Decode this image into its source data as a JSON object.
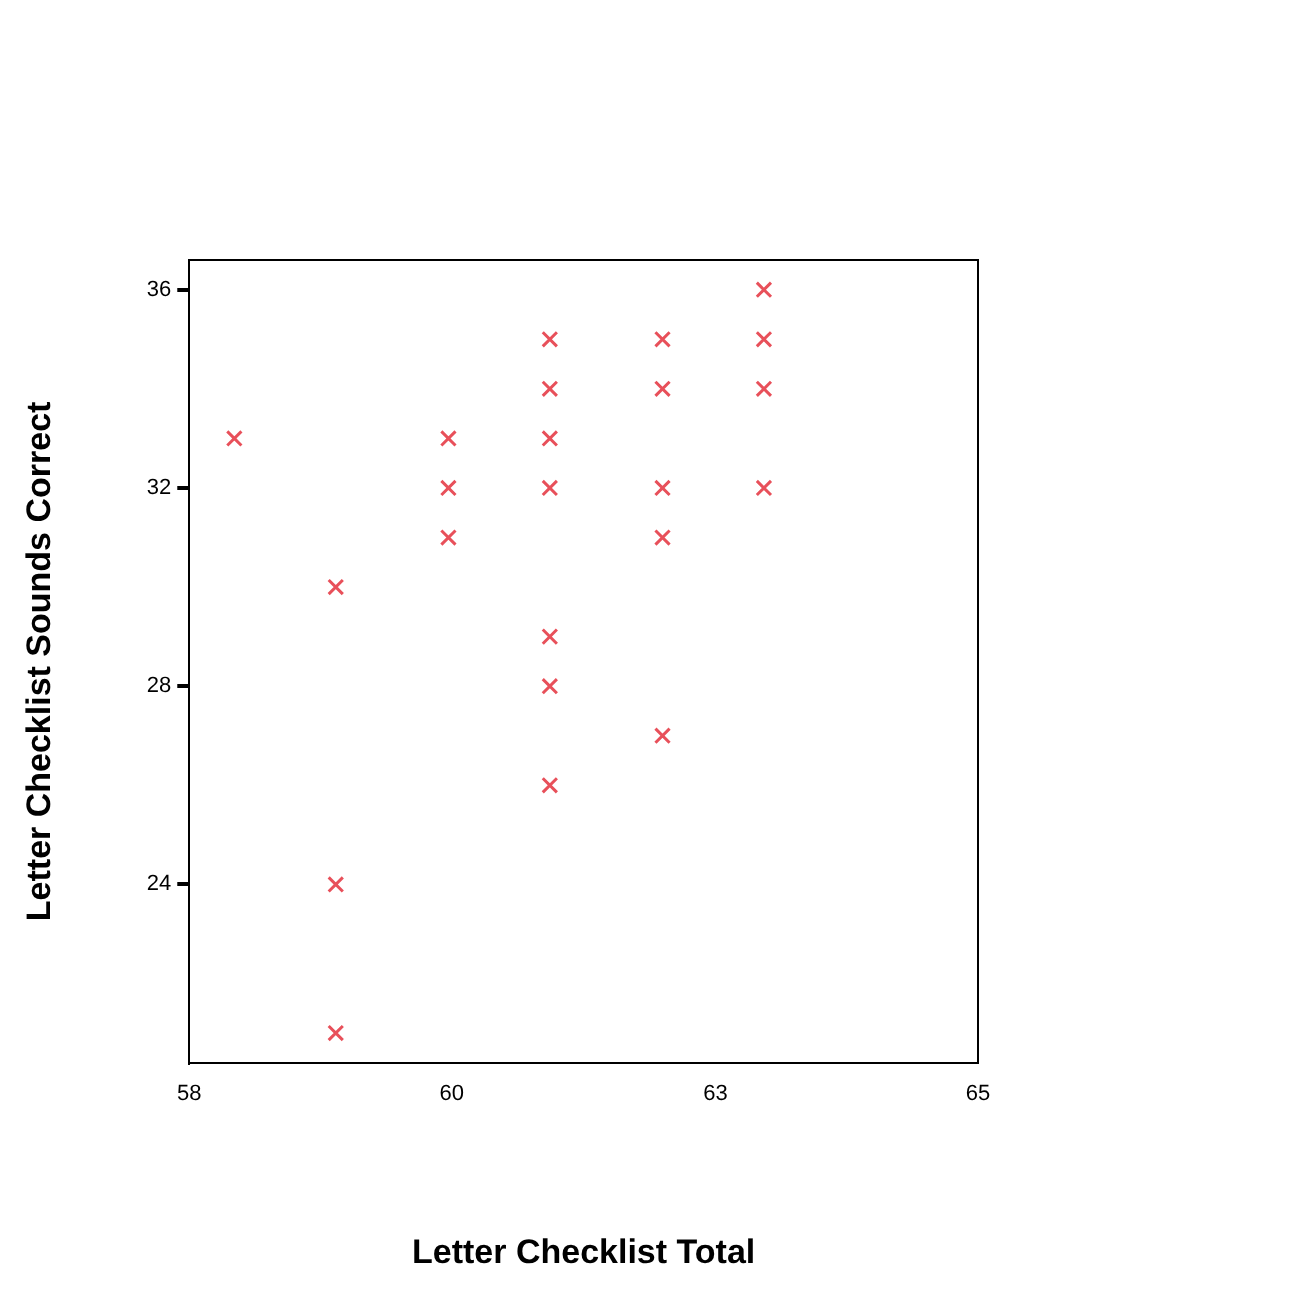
{
  "chart_data": {
    "type": "scatter",
    "xlabel": "Letter Checklist Total",
    "ylabel": "Letter Checklist Sounds Correct",
    "series": [
      {
        "color": "#e8505a",
        "x": [
          58.4,
          59.3,
          59.3,
          59.3,
          60.3,
          60.3,
          60.3,
          61.2,
          61.2,
          61.2,
          61.2,
          61.2,
          61.2,
          61.2,
          62.2,
          62.2,
          62.2,
          62.2,
          62.2,
          63.1,
          63.1,
          63.1,
          63.1
        ],
        "values": [
          33,
          30,
          24,
          21,
          33,
          32,
          31,
          35,
          34,
          33,
          32,
          29,
          28,
          26,
          35,
          34,
          32,
          31,
          27,
          36,
          35,
          34,
          32
        ]
      }
    ],
    "xlim": [
      58,
      65
    ],
    "xticks": [
      58,
      {
        "value": 60.33,
        "label": "60"
      },
      {
        "value": 62.67,
        "label": "63"
      },
      65
    ],
    "ylim": [
      20.4,
      36.6
    ],
    "yticks": [
      24,
      28,
      32,
      36
    ],
    "grid": false,
    "marker": "cross",
    "legend": false
  }
}
